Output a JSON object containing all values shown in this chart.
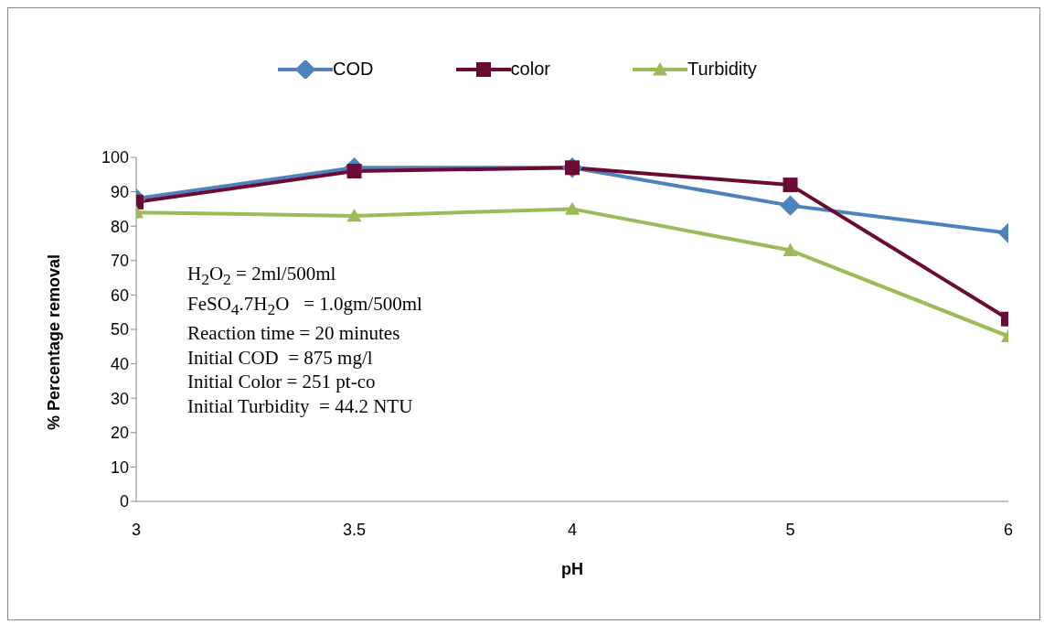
{
  "chart_data": {
    "type": "line",
    "xlabel": "pH",
    "ylabel": "% Percentage removal",
    "categories": [
      "3",
      "3.5",
      "4",
      "5",
      "6"
    ],
    "series": [
      {
        "name": "COD",
        "color": "#4f81bd",
        "marker": "diamond",
        "values": [
          88,
          97,
          97,
          86,
          78
        ]
      },
      {
        "name": "color",
        "color": "#6b0a32",
        "marker": "square",
        "values": [
          87,
          96,
          97,
          92,
          53
        ]
      },
      {
        "name": "Turbidity",
        "color": "#9bbb59",
        "marker": "triangle",
        "values": [
          84,
          83,
          85,
          73,
          48
        ]
      }
    ],
    "ylim": [
      0,
      100
    ],
    "yticks": [
      0,
      10,
      20,
      30,
      40,
      50,
      60,
      70,
      80,
      90,
      100
    ],
    "grid": false,
    "legend": "top",
    "line_style": "solid",
    "annotations": [
      "H$_{2}$O$_{2}$ = 2ml/500ml",
      "FeSO$_{4}$.7H$_{2}$O   = 1.0gm/500ml",
      "Reaction time = 20 minutes",
      "Initial COD  = 875 mg/l",
      "Initial Color = 251 pt-co",
      "Initial Turbidity  = 44.2 NTU"
    ]
  }
}
